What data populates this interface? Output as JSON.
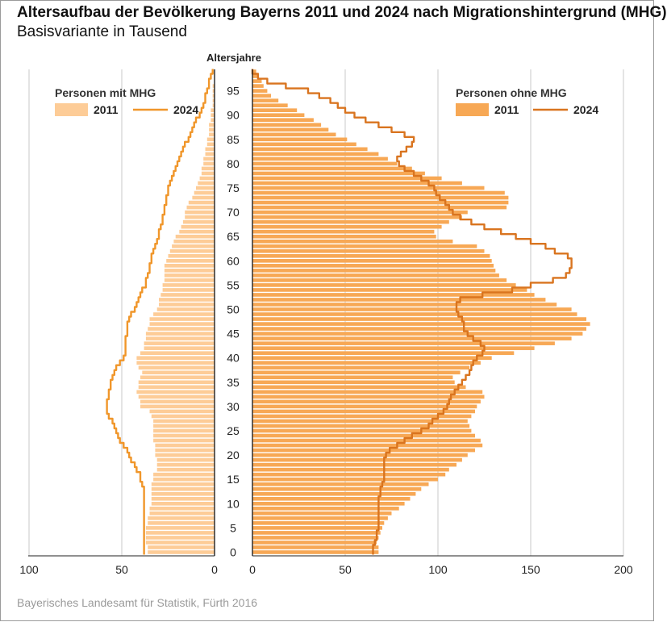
{
  "title": "Altersaufbau der Bevölkerung Bayerns 2011 und 2024 nach Migrationshintergrund (MHG)",
  "subtitle": "Basisvariante in Tausend",
  "source": "Bayerisches Landesamt für Statistik, Fürth 2016",
  "colors": {
    "left_bar_2011": "#fdcc97",
    "left_line_2024": "#f0962a",
    "right_bar_2011": "#f7a855",
    "right_line_2024": "#d9741f",
    "grid": "#c8c8c8",
    "axis": "#222222"
  },
  "chart_data": {
    "type": "population-pyramid",
    "center_label": "Altersjahre",
    "age_ticks": [
      0,
      5,
      10,
      15,
      20,
      25,
      30,
      35,
      40,
      45,
      50,
      55,
      60,
      65,
      70,
      75,
      80,
      85,
      90,
      95
    ],
    "ages": [
      0,
      1,
      2,
      3,
      4,
      5,
      6,
      7,
      8,
      9,
      10,
      11,
      12,
      13,
      14,
      15,
      16,
      17,
      18,
      19,
      20,
      21,
      22,
      23,
      24,
      25,
      26,
      27,
      28,
      29,
      30,
      31,
      32,
      33,
      34,
      35,
      36,
      37,
      38,
      39,
      40,
      41,
      42,
      43,
      44,
      45,
      46,
      47,
      48,
      49,
      50,
      51,
      52,
      53,
      54,
      55,
      56,
      57,
      58,
      59,
      60,
      61,
      62,
      63,
      64,
      65,
      66,
      67,
      68,
      69,
      70,
      71,
      72,
      73,
      74,
      75,
      76,
      77,
      78,
      79,
      80,
      81,
      82,
      83,
      84,
      85,
      86,
      87,
      88,
      89,
      90,
      91,
      92,
      93,
      94,
      95,
      96,
      97,
      98,
      99
    ],
    "left": {
      "legend_title": "Personen mit MHG",
      "xlim": [
        100,
        0
      ],
      "x_ticks": [
        "100",
        "50",
        "0"
      ],
      "x_tick_values": [
        100,
        50,
        0
      ],
      "series": [
        {
          "name": "2011",
          "type": "bar",
          "values": [
            36,
            36,
            37,
            37,
            37,
            37,
            36,
            36,
            35,
            35,
            34,
            34,
            34,
            34,
            34,
            33,
            33,
            31,
            31,
            31,
            32,
            32,
            32,
            33,
            33,
            33,
            33,
            33,
            34,
            35,
            40,
            40,
            41,
            42,
            41,
            41,
            40,
            39,
            41,
            42,
            42,
            40,
            38,
            38,
            37,
            37,
            36,
            35,
            35,
            33,
            31,
            30,
            30,
            29,
            28,
            28,
            27,
            27,
            27,
            27,
            26,
            25,
            24,
            23,
            22,
            21,
            19,
            18,
            17,
            16,
            16,
            15,
            14,
            12,
            11,
            10,
            9,
            8,
            7,
            7,
            6,
            6,
            5,
            5,
            4,
            4,
            3,
            3,
            3,
            2,
            2,
            2,
            1,
            1,
            1,
            1,
            1,
            0,
            0,
            0
          ]
        },
        {
          "name": "2024",
          "type": "line",
          "values": [
            38,
            38,
            38,
            38,
            38,
            38,
            38,
            38,
            38,
            38,
            38,
            38,
            38,
            38,
            39,
            40,
            40,
            42,
            43,
            45,
            46,
            47,
            49,
            51,
            52,
            53,
            54,
            55,
            57,
            58,
            58,
            58,
            57,
            57,
            56,
            56,
            55,
            54,
            53,
            51,
            49,
            48,
            48,
            48,
            48,
            47,
            47,
            47,
            46,
            45,
            43,
            42,
            41,
            40,
            39,
            37,
            37,
            36,
            35,
            35,
            34,
            34,
            33,
            32,
            31,
            30,
            30,
            29,
            28,
            28,
            27,
            27,
            26,
            26,
            25,
            25,
            24,
            23,
            22,
            21,
            20,
            19,
            18,
            17,
            16,
            14,
            13,
            12,
            11,
            10,
            8,
            7,
            6,
            5,
            5,
            4,
            3,
            3,
            2,
            1
          ]
        }
      ]
    },
    "right": {
      "legend_title": "Personen ohne MHG",
      "xlim": [
        0,
        200
      ],
      "x_ticks": [
        "0",
        "50",
        "100",
        "150",
        "200"
      ],
      "x_tick_values": [
        0,
        50,
        100,
        150,
        200
      ],
      "series": [
        {
          "name": "2011",
          "type": "bar",
          "values": [
            68,
            68,
            67,
            68,
            69,
            70,
            71,
            73,
            75,
            79,
            82,
            85,
            88,
            91,
            95,
            100,
            104,
            106,
            110,
            113,
            116,
            120,
            124,
            123,
            120,
            118,
            117,
            116,
            118,
            120,
            121,
            123,
            125,
            124,
            115,
            109,
            108,
            112,
            117,
            123,
            129,
            141,
            152,
            163,
            172,
            178,
            180,
            182,
            180,
            175,
            172,
            164,
            158,
            152,
            148,
            142,
            137,
            133,
            131,
            130,
            129,
            128,
            125,
            121,
            108,
            99,
            98,
            102,
            106,
            113,
            116,
            137,
            138,
            138,
            136,
            125,
            113,
            102,
            93,
            86,
            78,
            73,
            68,
            62,
            56,
            51,
            45,
            41,
            37,
            33,
            28,
            24,
            19,
            14,
            10,
            8,
            6,
            5,
            3,
            2
          ]
        },
        {
          "name": "2024",
          "type": "line",
          "values": [
            65,
            65,
            66,
            67,
            67,
            68,
            68,
            68,
            68,
            68,
            68,
            68,
            69,
            69,
            70,
            71,
            71,
            71,
            71,
            71,
            72,
            74,
            78,
            82,
            86,
            91,
            95,
            97,
            100,
            103,
            105,
            106,
            107,
            109,
            111,
            113,
            115,
            117,
            118,
            119,
            121,
            124,
            125,
            123,
            119,
            116,
            114,
            114,
            113,
            111,
            110,
            110,
            112,
            124,
            140,
            150,
            162,
            169,
            171,
            172,
            172,
            170,
            163,
            158,
            150,
            142,
            134,
            125,
            118,
            112,
            108,
            106,
            104,
            101,
            99,
            98,
            95,
            91,
            87,
            82,
            79,
            78,
            80,
            83,
            86,
            87,
            82,
            75,
            68,
            61,
            55,
            50,
            46,
            42,
            36,
            30,
            18,
            8,
            3,
            0
          ]
        }
      ]
    }
  }
}
